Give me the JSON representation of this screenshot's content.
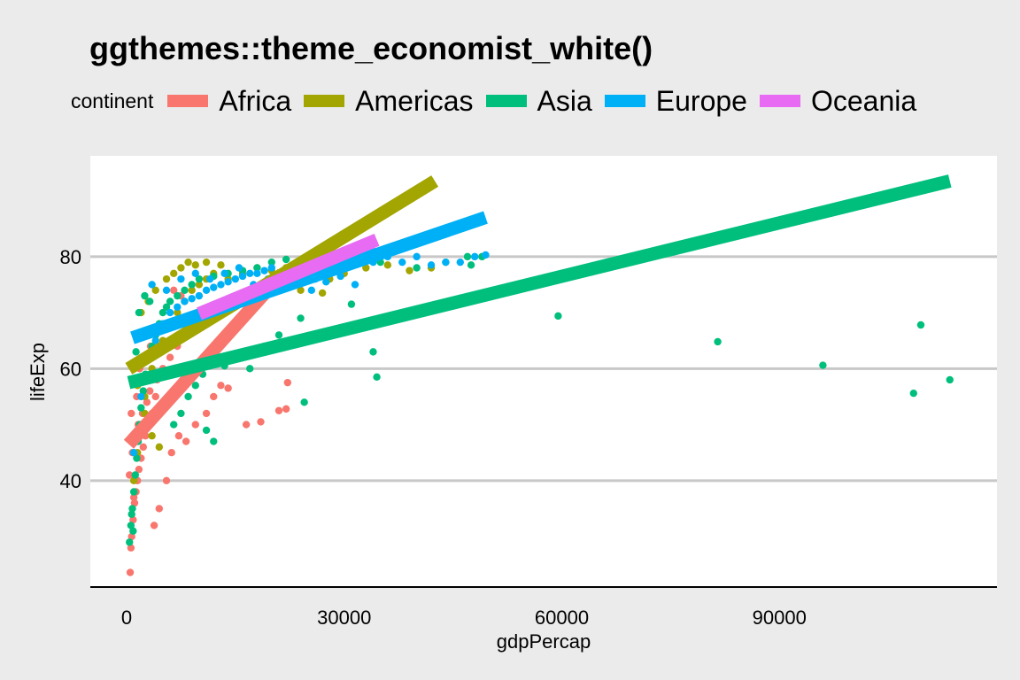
{
  "title": "ggthemes::theme_economist_white()",
  "legend": {
    "title": "continent",
    "items": [
      {
        "label": "Africa",
        "color": "#F8766D"
      },
      {
        "label": "Americas",
        "color": "#A3A500"
      },
      {
        "label": "Asia",
        "color": "#00BF7D"
      },
      {
        "label": "Europe",
        "color": "#00B0F6"
      },
      {
        "label": "Oceania",
        "color": "#E76BF3"
      }
    ]
  },
  "colors": {
    "background": "#EBEBEB",
    "panel": "#FFFFFF",
    "gridline": "#C8C8C8"
  },
  "chart_data": {
    "type": "scatter",
    "title": "ggthemes::theme_economist_white()",
    "xlabel": "gdpPercap",
    "ylabel": "lifeExp",
    "xlim": [
      -5000,
      120000
    ],
    "ylim": [
      21,
      98
    ],
    "x_ticks": [
      0,
      30000,
      60000,
      90000
    ],
    "x_tick_labels": [
      "0",
      "30000",
      "60000",
      "90000"
    ],
    "y_ticks": [
      40,
      60,
      80
    ],
    "y_tick_labels": [
      "40",
      "60",
      "80"
    ],
    "grid": "horizontal major",
    "legend_position": "top",
    "series": [
      {
        "name": "Africa",
        "color": "#F8766D",
        "points": [
          [
            500,
            23.6
          ],
          [
            700,
            30
          ],
          [
            900,
            33
          ],
          [
            1100,
            36
          ],
          [
            1300,
            38
          ],
          [
            1500,
            40
          ],
          [
            1700,
            42
          ],
          [
            2000,
            44
          ],
          [
            2300,
            46
          ],
          [
            2600,
            48
          ],
          [
            3000,
            50
          ],
          [
            3500,
            52
          ],
          [
            4000,
            55
          ],
          [
            800,
            45
          ],
          [
            1200,
            48
          ],
          [
            1600,
            50
          ],
          [
            2200,
            52
          ],
          [
            2800,
            54
          ],
          [
            3200,
            56
          ],
          [
            4200,
            58
          ],
          [
            5000,
            60
          ],
          [
            6000,
            62
          ],
          [
            7000,
            64
          ],
          [
            8000,
            66
          ],
          [
            9000,
            68
          ],
          [
            10000,
            70
          ],
          [
            6500,
            74
          ],
          [
            7500,
            73
          ],
          [
            4500,
            35
          ],
          [
            3800,
            32
          ],
          [
            5500,
            40
          ],
          [
            6200,
            45
          ],
          [
            7200,
            48
          ],
          [
            8200,
            47
          ],
          [
            9500,
            50
          ],
          [
            11000,
            52
          ],
          [
            12000,
            55
          ],
          [
            13000,
            57
          ],
          [
            14000,
            56.5
          ],
          [
            16500,
            50
          ],
          [
            18500,
            50.5
          ],
          [
            21000,
            52.5
          ],
          [
            22000,
            52.8
          ],
          [
            22200,
            57.5
          ],
          [
            600,
            28
          ],
          [
            1000,
            37
          ],
          [
            1400,
            55
          ],
          [
            1800,
            60
          ],
          [
            2500,
            62
          ],
          [
            3300,
            64
          ],
          [
            400,
            41
          ],
          [
            650,
            52
          ],
          [
            950,
            58
          ]
        ],
        "trend": {
          "x": [
            300,
            21500
          ],
          "y": [
            46.5,
            77
          ]
        }
      },
      {
        "name": "Americas",
        "color": "#A3A500",
        "points": [
          [
            1000,
            40
          ],
          [
            1500,
            45
          ],
          [
            2000,
            50
          ],
          [
            2500,
            55
          ],
          [
            3000,
            58
          ],
          [
            3500,
            60
          ],
          [
            4000,
            63
          ],
          [
            5000,
            65
          ],
          [
            6000,
            68
          ],
          [
            7000,
            70
          ],
          [
            8000,
            72
          ],
          [
            9000,
            74
          ],
          [
            10000,
            75
          ],
          [
            11000,
            76
          ],
          [
            12000,
            77
          ],
          [
            14000,
            76
          ],
          [
            16000,
            77
          ],
          [
            18000,
            78
          ],
          [
            20000,
            77.5
          ],
          [
            22000,
            78
          ],
          [
            25000,
            77
          ],
          [
            28000,
            76
          ],
          [
            30000,
            77
          ],
          [
            33000,
            78
          ],
          [
            36000,
            78.5
          ],
          [
            39000,
            77.5
          ],
          [
            42000,
            78
          ],
          [
            5500,
            76
          ],
          [
            6500,
            77
          ],
          [
            7500,
            78
          ],
          [
            8500,
            79
          ],
          [
            9500,
            78.5
          ],
          [
            11000,
            79
          ],
          [
            13000,
            78.5
          ],
          [
            2000,
            70
          ],
          [
            3000,
            72
          ],
          [
            4000,
            74
          ],
          [
            1500,
            57
          ],
          [
            2500,
            52
          ],
          [
            3500,
            48
          ],
          [
            4500,
            46
          ],
          [
            24000,
            74
          ],
          [
            27000,
            73.5
          ]
        ],
        "trend": {
          "x": [
            300,
            42500
          ],
          "y": [
            60,
            93.5
          ]
        }
      },
      {
        "name": "Asia",
        "color": "#00BF7D",
        "points": [
          [
            400,
            29
          ],
          [
            600,
            32
          ],
          [
            800,
            35
          ],
          [
            1000,
            38
          ],
          [
            1200,
            41
          ],
          [
            1400,
            44
          ],
          [
            1600,
            47
          ],
          [
            1800,
            50
          ],
          [
            2000,
            53
          ],
          [
            2300,
            56
          ],
          [
            2600,
            59
          ],
          [
            3000,
            62
          ],
          [
            3500,
            64
          ],
          [
            4000,
            66
          ],
          [
            4500,
            68
          ],
          [
            5000,
            70
          ],
          [
            5500,
            71
          ],
          [
            6000,
            72
          ],
          [
            7000,
            73
          ],
          [
            8000,
            74
          ],
          [
            9000,
            75
          ],
          [
            10000,
            76
          ],
          [
            12000,
            76.5
          ],
          [
            14000,
            77
          ],
          [
            16000,
            77.5
          ],
          [
            18000,
            78
          ],
          [
            20000,
            79
          ],
          [
            22000,
            79.5
          ],
          [
            25000,
            79
          ],
          [
            28000,
            80
          ],
          [
            30000,
            79.5
          ],
          [
            35000,
            79
          ],
          [
            40000,
            78
          ],
          [
            44000,
            79
          ],
          [
            47000,
            80
          ],
          [
            49000,
            80
          ],
          [
            47500,
            78.5
          ],
          [
            17000,
            60
          ],
          [
            19000,
            64
          ],
          [
            21000,
            66
          ],
          [
            24000,
            69
          ],
          [
            31000,
            71.5
          ],
          [
            34000,
            63
          ],
          [
            34500,
            58.5
          ],
          [
            24500,
            54
          ],
          [
            12000,
            47
          ],
          [
            11000,
            49
          ],
          [
            59500,
            69.4
          ],
          [
            81500,
            64.8
          ],
          [
            96000,
            60.6
          ],
          [
            109500,
            67.8
          ],
          [
            108500,
            55.6
          ],
          [
            113500,
            58
          ],
          [
            700,
            34
          ],
          [
            900,
            31
          ],
          [
            1100,
            58
          ],
          [
            1300,
            63
          ],
          [
            1500,
            66
          ],
          [
            1700,
            70
          ],
          [
            2500,
            73
          ],
          [
            3200,
            72
          ],
          [
            6500,
            50
          ],
          [
            7500,
            52
          ],
          [
            8500,
            55
          ],
          [
            9500,
            57
          ],
          [
            10500,
            59
          ],
          [
            13500,
            60.5
          ]
        ],
        "trend": {
          "x": [
            300,
            113500
          ],
          "y": [
            57.5,
            93.5
          ]
        }
      },
      {
        "name": "Europe",
        "color": "#00B0F6",
        "points": [
          [
            1000,
            45
          ],
          [
            2000,
            55
          ],
          [
            3000,
            62
          ],
          [
            4000,
            65
          ],
          [
            5000,
            68
          ],
          [
            6000,
            70
          ],
          [
            7000,
            71
          ],
          [
            8000,
            72
          ],
          [
            9000,
            72.5
          ],
          [
            10000,
            73
          ],
          [
            11000,
            74
          ],
          [
            12000,
            74.5
          ],
          [
            13000,
            75
          ],
          [
            14000,
            75.5
          ],
          [
            15000,
            76
          ],
          [
            16000,
            76.5
          ],
          [
            17000,
            77
          ],
          [
            18000,
            77
          ],
          [
            19000,
            77.5
          ],
          [
            20000,
            78
          ],
          [
            22000,
            77
          ],
          [
            24000,
            78.5
          ],
          [
            26000,
            76
          ],
          [
            28000,
            79
          ],
          [
            30000,
            78
          ],
          [
            32000,
            80
          ],
          [
            34000,
            79
          ],
          [
            36000,
            80
          ],
          [
            38000,
            79
          ],
          [
            40000,
            80
          ],
          [
            42000,
            78.5
          ],
          [
            44000,
            79
          ],
          [
            46000,
            79
          ],
          [
            48000,
            80
          ],
          [
            49500,
            80.3
          ],
          [
            3500,
            75
          ],
          [
            5500,
            74
          ],
          [
            7500,
            76
          ],
          [
            9500,
            77
          ],
          [
            11500,
            76
          ],
          [
            13500,
            77
          ],
          [
            15500,
            78
          ],
          [
            17500,
            75
          ],
          [
            19500,
            76
          ],
          [
            21500,
            75.5
          ],
          [
            23500,
            76
          ],
          [
            25500,
            74
          ],
          [
            27500,
            75.5
          ],
          [
            29500,
            76.5
          ],
          [
            31500,
            75
          ]
        ],
        "trend": {
          "x": [
            800,
            49500
          ],
          "y": [
            65.5,
            87
          ]
        }
      },
      {
        "name": "Oceania",
        "color": "#E76BF3",
        "points": [
          [
            10000,
            69
          ],
          [
            12000,
            70.5
          ],
          [
            14000,
            71
          ],
          [
            16000,
            72
          ],
          [
            18000,
            73
          ],
          [
            20000,
            74
          ],
          [
            22000,
            75
          ],
          [
            24000,
            77
          ],
          [
            26000,
            78
          ],
          [
            28000,
            79
          ],
          [
            30000,
            80
          ],
          [
            34000,
            81
          ]
        ],
        "trend": {
          "x": [
            10000,
            34500
          ],
          "y": [
            69.8,
            83
          ]
        }
      }
    ]
  }
}
